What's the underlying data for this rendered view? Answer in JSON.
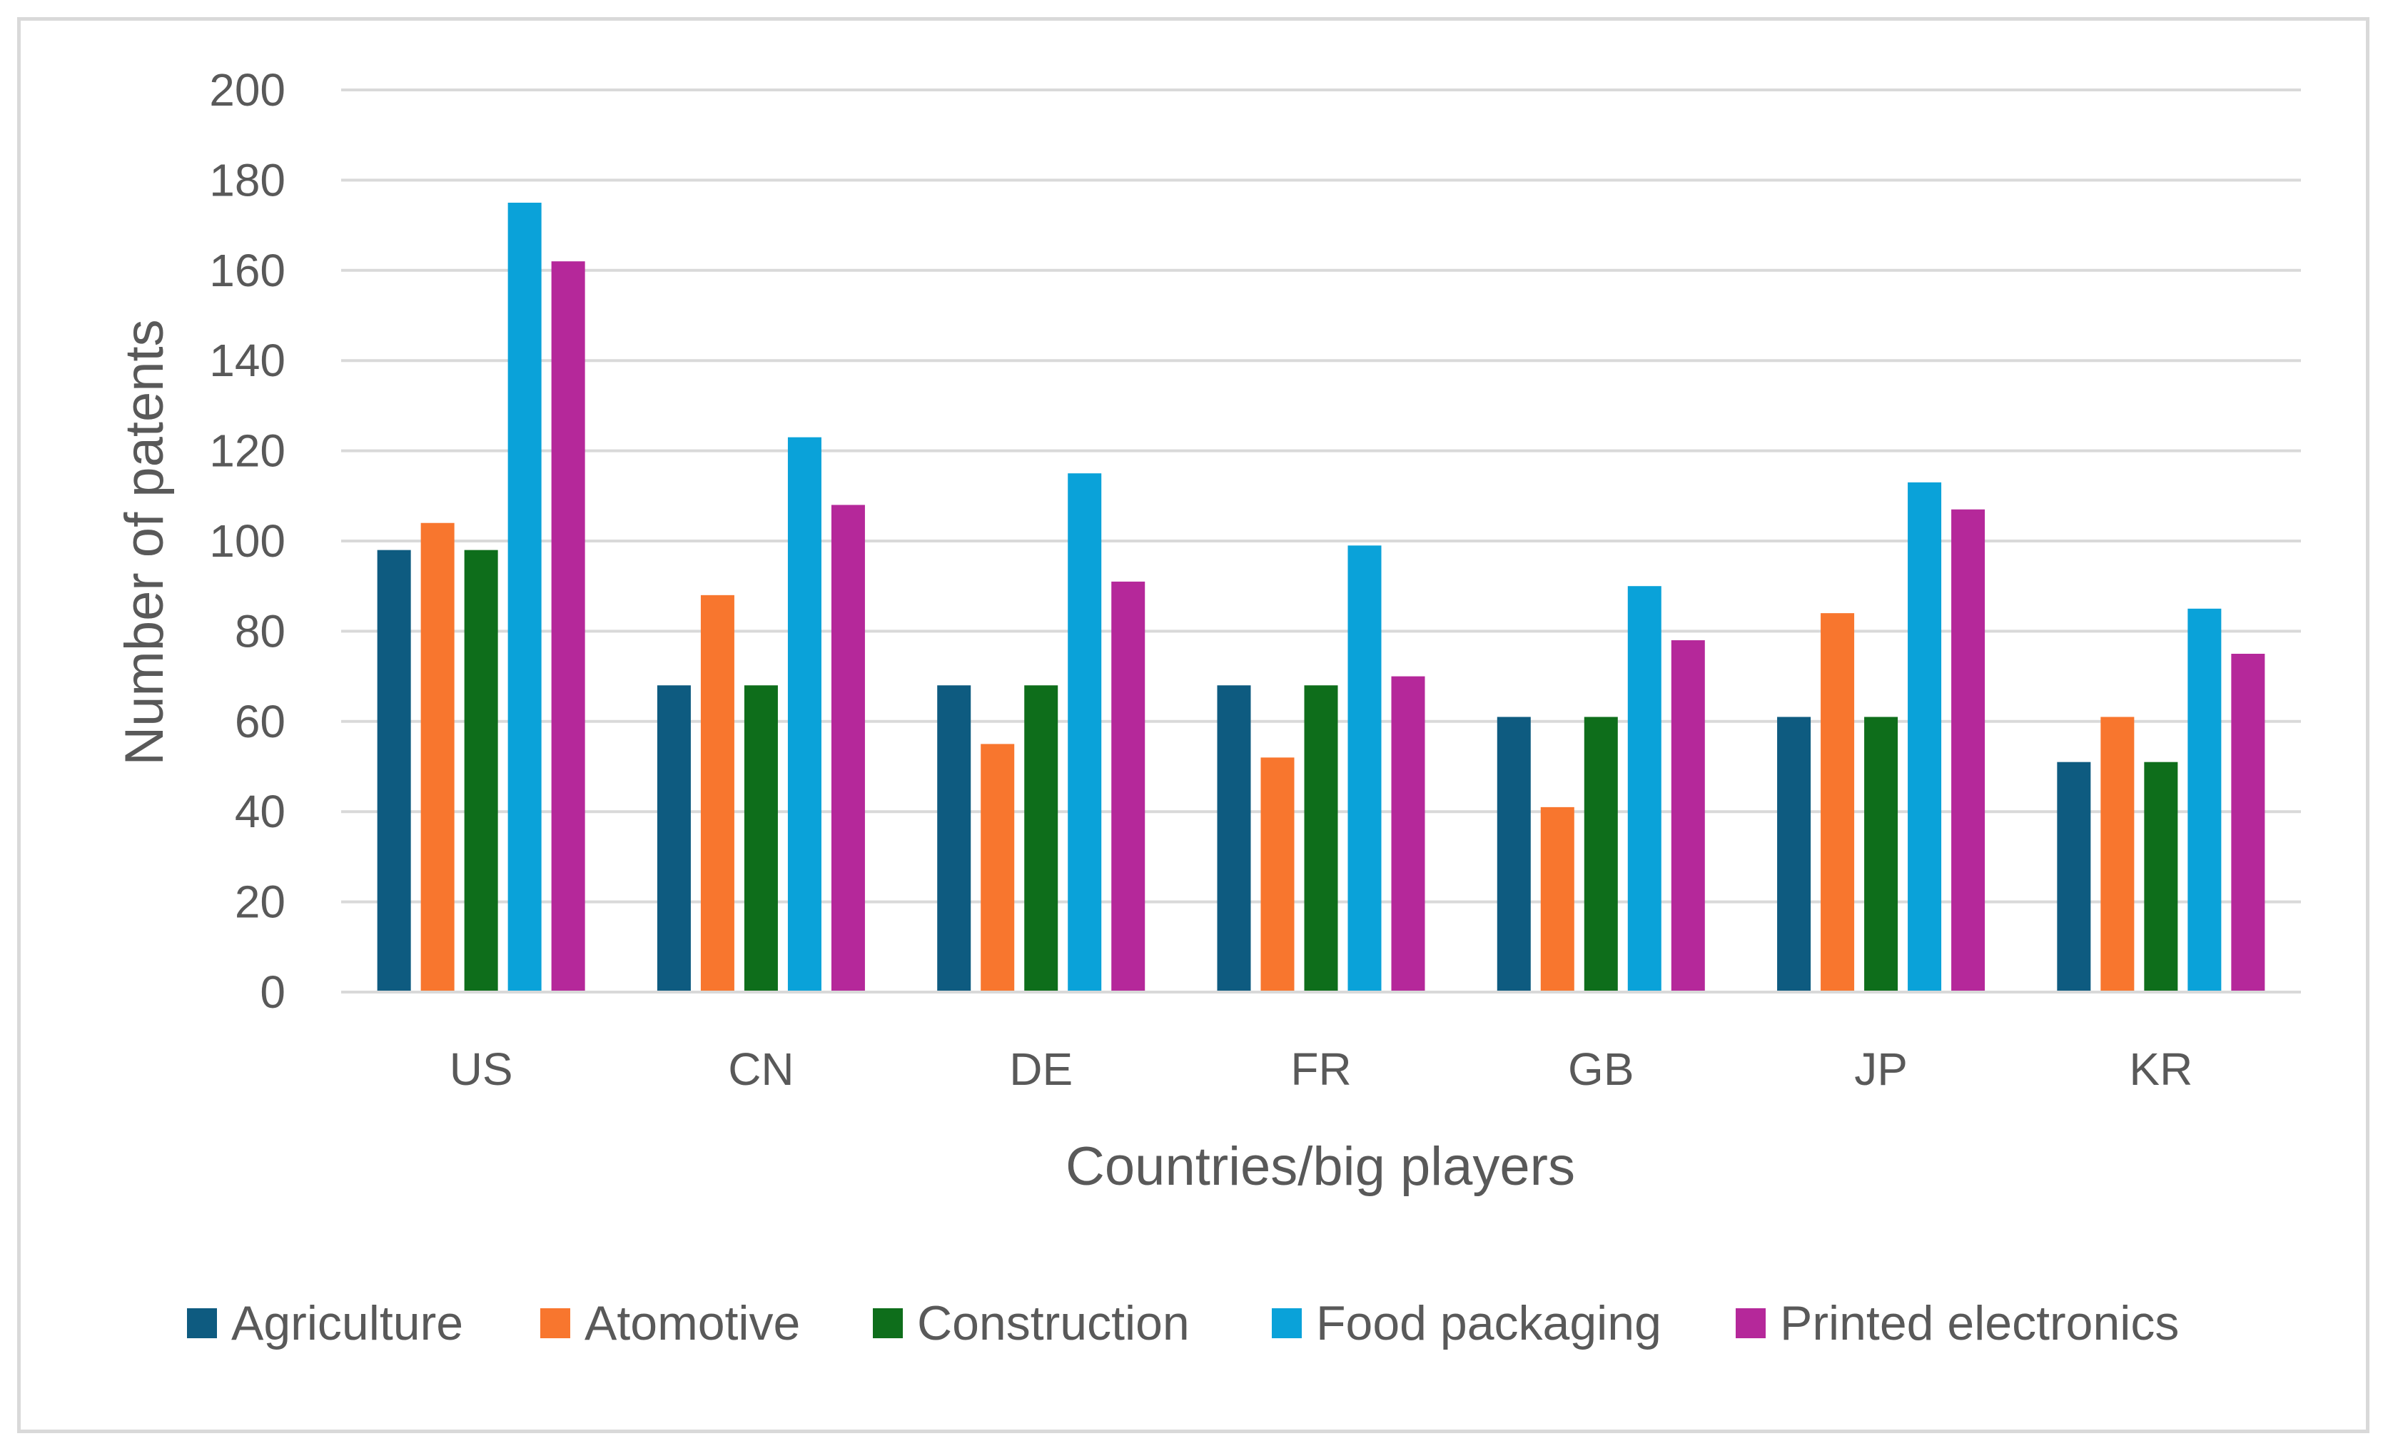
{
  "chart_data": {
    "type": "bar",
    "title": "",
    "xlabel": "Countries/big players",
    "ylabel": "Number of patents",
    "ylim": [
      0,
      200
    ],
    "yticks": [
      "0",
      "20",
      "40",
      "60",
      "80",
      "100",
      "120",
      "140",
      "160",
      "180",
      "200"
    ],
    "grid": true,
    "legend_position": "bottom",
    "categories": [
      "US",
      "CN",
      "DE",
      "FR",
      "GB",
      "JP",
      "KR"
    ],
    "series": [
      {
        "name": "Agriculture",
        "color": "#0e5b80",
        "values": [
          98,
          68,
          68,
          68,
          61,
          61,
          51
        ]
      },
      {
        "name": "Atomotive",
        "color": "#f8762e",
        "values": [
          104,
          88,
          55,
          52,
          41,
          84,
          61
        ]
      },
      {
        "name": "Construction",
        "color": "#0e6e1b",
        "values": [
          98,
          68,
          68,
          68,
          61,
          61,
          51
        ]
      },
      {
        "name": "Food packaging",
        "color": "#0aa2d9",
        "values": [
          175,
          123,
          115,
          99,
          90,
          113,
          85
        ]
      },
      {
        "name": "Printed electronics",
        "color": "#b5289a",
        "values": [
          162,
          108,
          91,
          70,
          78,
          107,
          75
        ]
      }
    ]
  }
}
